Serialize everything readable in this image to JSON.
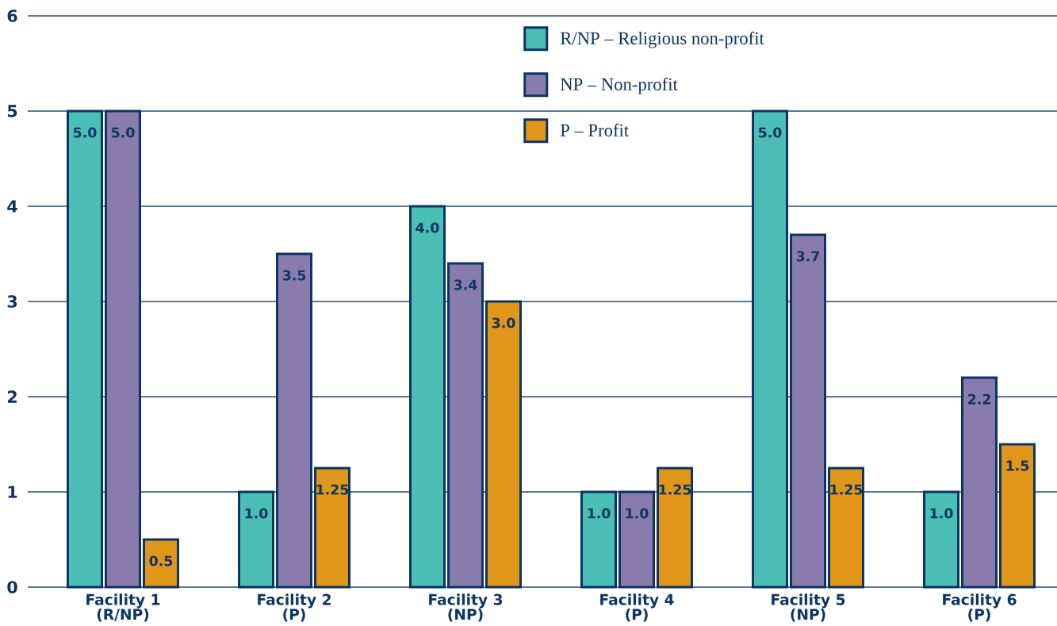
{
  "chart_data": {
    "type": "bar",
    "categories": [
      "Facility 1 (R/NP)",
      "Facility 2 (P)",
      "Facility 3 (NP)",
      "Facility 4 (P)",
      "Facility 5 (NP)",
      "Facility 6 (P)"
    ],
    "series": [
      {
        "name": "R/NP – Religious non-profit",
        "color": "#4bbfb5",
        "values": [
          5.0,
          1.0,
          4.0,
          1.0,
          5.0,
          1.0
        ],
        "value_labels": [
          "5.0",
          "1.0",
          "4.0",
          "1.0",
          "5.0",
          "1.0"
        ]
      },
      {
        "name": "NP – Non-profit",
        "color": "#8a7bad",
        "values": [
          5.0,
          3.5,
          3.4,
          1.0,
          3.7,
          2.2
        ],
        "value_labels": [
          "5.0",
          "3.5",
          "3.4",
          "1.0",
          "3.7",
          "2.2"
        ]
      },
      {
        "name": "P – Profit",
        "color": "#e09619",
        "values": [
          0.5,
          1.25,
          3.0,
          1.25,
          1.25,
          1.5
        ],
        "value_labels": [
          "0.5",
          "1.25",
          "3.0",
          "1.25",
          "1.25",
          "1.5"
        ]
      }
    ],
    "ylim": [
      0,
      6
    ],
    "yticks": [
      0,
      1,
      2,
      3,
      4,
      5,
      6
    ],
    "grid": "y",
    "legend": "top"
  }
}
